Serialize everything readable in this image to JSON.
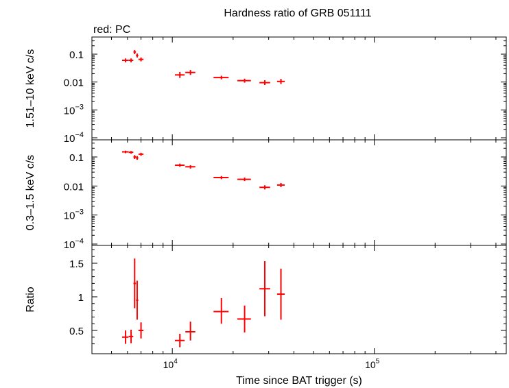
{
  "chart_data": {
    "type": "scatter",
    "title": "Hardness ratio of GRB 051111",
    "legend_label": "red: PC",
    "xlabel": "Time since BAT trigger (s)",
    "x_scale": "log",
    "xlim": [
      4000,
      450000
    ],
    "x_ticks": [
      {
        "value": 10000,
        "label": "10",
        "exp": "4"
      },
      {
        "value": 100000,
        "label": "10",
        "exp": "5"
      }
    ],
    "panels": [
      {
        "id": "hard",
        "ylabel": "1.51–10 keV c/s",
        "y_scale": "log",
        "ylim": [
          0.0001,
          0.3
        ],
        "y_ticks": [
          {
            "value": 0.1,
            "label": "0.1",
            "exp": ""
          },
          {
            "value": 0.01,
            "label": "0.01",
            "exp": ""
          },
          {
            "value": 0.001,
            "label": "10",
            "exp": "−3"
          },
          {
            "value": 0.0001,
            "label": "10",
            "exp": "−4"
          }
        ],
        "points": [
          {
            "x": 5870,
            "xlo": 5640,
            "xhi": 6070,
            "y": 0.06,
            "ylo": 0.051,
            "yhi": 0.07
          },
          {
            "x": 6250,
            "xlo": 6080,
            "xhi": 6410,
            "y": 0.06,
            "ylo": 0.051,
            "yhi": 0.07
          },
          {
            "x": 6510,
            "xlo": 6420,
            "xhi": 6610,
            "y": 0.12,
            "ylo": 0.1,
            "yhi": 0.14
          },
          {
            "x": 6700,
            "xlo": 6610,
            "xhi": 6790,
            "y": 0.09,
            "ylo": 0.076,
            "yhi": 0.105
          },
          {
            "x": 7000,
            "xlo": 6800,
            "xhi": 7200,
            "y": 0.065,
            "ylo": 0.055,
            "yhi": 0.076
          },
          {
            "x": 10900,
            "xlo": 10300,
            "xhi": 11500,
            "y": 0.018,
            "ylo": 0.014,
            "yhi": 0.023
          },
          {
            "x": 12300,
            "xlo": 11600,
            "xhi": 13000,
            "y": 0.022,
            "ylo": 0.018,
            "yhi": 0.027
          },
          {
            "x": 17500,
            "xlo": 16000,
            "xhi": 19000,
            "y": 0.0145,
            "ylo": 0.0125,
            "yhi": 0.0168
          },
          {
            "x": 22800,
            "xlo": 21000,
            "xhi": 24500,
            "y": 0.0112,
            "ylo": 0.0095,
            "yhi": 0.0132
          },
          {
            "x": 28700,
            "xlo": 27000,
            "xhi": 30500,
            "y": 0.0095,
            "ylo": 0.0078,
            "yhi": 0.0116
          },
          {
            "x": 34500,
            "xlo": 33000,
            "xhi": 36000,
            "y": 0.0105,
            "ylo": 0.0085,
            "yhi": 0.013
          }
        ]
      },
      {
        "id": "soft",
        "ylabel": "0.3–1.5 keV c/s",
        "y_scale": "log",
        "ylim": [
          0.0001,
          0.3
        ],
        "y_ticks": [
          {
            "value": 0.1,
            "label": "0.1",
            "exp": ""
          },
          {
            "value": 0.01,
            "label": "0.01",
            "exp": ""
          },
          {
            "value": 0.001,
            "label": "10",
            "exp": "−3"
          },
          {
            "value": 0.0001,
            "label": "10",
            "exp": "−4"
          }
        ],
        "points": [
          {
            "x": 5870,
            "xlo": 5640,
            "xhi": 6070,
            "y": 0.15,
            "ylo": 0.135,
            "yhi": 0.165
          },
          {
            "x": 6250,
            "xlo": 6080,
            "xhi": 6410,
            "y": 0.145,
            "ylo": 0.13,
            "yhi": 0.16
          },
          {
            "x": 6510,
            "xlo": 6420,
            "xhi": 6610,
            "y": 0.1,
            "ylo": 0.085,
            "yhi": 0.116
          },
          {
            "x": 6700,
            "xlo": 6610,
            "xhi": 6790,
            "y": 0.093,
            "ylo": 0.08,
            "yhi": 0.108
          },
          {
            "x": 7000,
            "xlo": 6800,
            "xhi": 7200,
            "y": 0.125,
            "ylo": 0.11,
            "yhi": 0.14
          },
          {
            "x": 10900,
            "xlo": 10300,
            "xhi": 11500,
            "y": 0.052,
            "ylo": 0.046,
            "yhi": 0.059
          },
          {
            "x": 12300,
            "xlo": 11600,
            "xhi": 13000,
            "y": 0.046,
            "ylo": 0.04,
            "yhi": 0.052
          },
          {
            "x": 17500,
            "xlo": 16000,
            "xhi": 19000,
            "y": 0.0195,
            "ylo": 0.0172,
            "yhi": 0.022
          },
          {
            "x": 22800,
            "xlo": 21000,
            "xhi": 24500,
            "y": 0.017,
            "ylo": 0.0148,
            "yhi": 0.0195
          },
          {
            "x": 28700,
            "xlo": 27000,
            "xhi": 30500,
            "y": 0.009,
            "ylo": 0.0076,
            "yhi": 0.0106
          },
          {
            "x": 34500,
            "xlo": 33000,
            "xhi": 36000,
            "y": 0.0108,
            "ylo": 0.0091,
            "yhi": 0.0127
          }
        ]
      },
      {
        "id": "ratio",
        "ylabel": "Ratio",
        "y_scale": "linear",
        "ylim": [
          0.23,
          1.74
        ],
        "y_ticks": [
          {
            "value": 0.5,
            "label": "0.5",
            "exp": ""
          },
          {
            "value": 1.0,
            "label": "1",
            "exp": ""
          },
          {
            "value": 1.5,
            "label": "1.5",
            "exp": ""
          }
        ],
        "points": [
          {
            "x": 5870,
            "xlo": 5640,
            "xhi": 6070,
            "y": 0.4,
            "ylo": 0.3,
            "yhi": 0.5
          },
          {
            "x": 6250,
            "xlo": 6080,
            "xhi": 6410,
            "y": 0.41,
            "ylo": 0.31,
            "yhi": 0.51
          },
          {
            "x": 6510,
            "xlo": 6420,
            "xhi": 6610,
            "y": 1.2,
            "ylo": 0.83,
            "yhi": 1.57
          },
          {
            "x": 6700,
            "xlo": 6610,
            "xhi": 6790,
            "y": 0.95,
            "ylo": 0.66,
            "yhi": 1.24
          },
          {
            "x": 7000,
            "xlo": 6800,
            "xhi": 7200,
            "y": 0.5,
            "ylo": 0.38,
            "yhi": 0.62
          },
          {
            "x": 10900,
            "xlo": 10300,
            "xhi": 11500,
            "y": 0.35,
            "ylo": 0.25,
            "yhi": 0.45
          },
          {
            "x": 12300,
            "xlo": 11600,
            "xhi": 13000,
            "y": 0.48,
            "ylo": 0.35,
            "yhi": 0.63
          },
          {
            "x": 17500,
            "xlo": 16000,
            "xhi": 19000,
            "y": 0.78,
            "ylo": 0.6,
            "yhi": 0.98
          },
          {
            "x": 22800,
            "xlo": 21000,
            "xhi": 24500,
            "y": 0.67,
            "ylo": 0.47,
            "yhi": 0.87
          },
          {
            "x": 28700,
            "xlo": 27000,
            "xhi": 30500,
            "y": 1.12,
            "ylo": 0.71,
            "yhi": 1.53
          },
          {
            "x": 34500,
            "xlo": 33000,
            "xhi": 36000,
            "y": 1.04,
            "ylo": 0.66,
            "yhi": 1.42
          }
        ]
      }
    ],
    "marker_color": "#ff0000"
  }
}
